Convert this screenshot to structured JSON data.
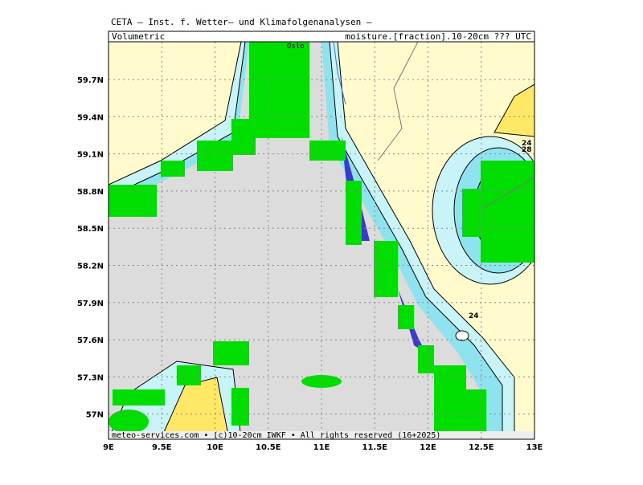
{
  "header": {
    "title": "CETA — Inst. f. Wetter— und Klimafolgenanalysen —",
    "left": "Volumetric",
    "right": "moisture.[fraction].10-20cm ??? UTC"
  },
  "map": {
    "place_labels": [
      "Oslo"
    ],
    "contour_labels": [
      "24",
      "28",
      "24"
    ],
    "credit": "meteo-services.com • (c)10-20cm IWKF • All rights reserved (16+2025)"
  },
  "axes": {
    "y_labels": [
      "59.7N",
      "59.4N",
      "59.1N",
      "58.8N",
      "58.5N",
      "58.2N",
      "57.9N",
      "57.6N",
      "57.3N",
      "57N"
    ],
    "x_labels": [
      "9E",
      "9.5E",
      "10E",
      "10.5E",
      "11E",
      "11.5E",
      "12E",
      "12.5E",
      "13E"
    ]
  }
}
